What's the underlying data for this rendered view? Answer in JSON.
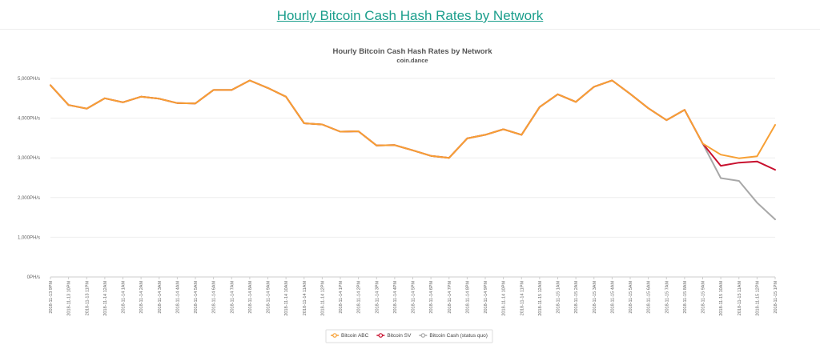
{
  "page": {
    "title": "Hourly Bitcoin Cash Hash Rates by Network"
  },
  "chart_data": {
    "type": "line",
    "title": "Hourly Bitcoin Cash Hash Rates by Network",
    "subtitle": "coin.dance",
    "xlabel": "",
    "ylabel": "",
    "ylim": [
      0,
      5000
    ],
    "y_ticks": [
      "0PH/s",
      "1,000PH/s",
      "2,000PH/s",
      "3,000PH/s",
      "4,000PH/s",
      "5,000PH/s"
    ],
    "y_tick_values": [
      0,
      1000,
      2000,
      3000,
      4000,
      5000
    ],
    "grid": true,
    "legend_position": "bottom",
    "categories": [
      "2018-11-13 9PM",
      "2018-11-13 10PM",
      "2018-11-13 11PM",
      "2018-11-14 12AM",
      "2018-11-14 1AM",
      "2018-11-14 2AM",
      "2018-11-14 3AM",
      "2018-11-14 4AM",
      "2018-11-14 5AM",
      "2018-11-14 6AM",
      "2018-11-14 7AM",
      "2018-11-14 8AM",
      "2018-11-14 9AM",
      "2018-11-14 10AM",
      "2018-11-14 11AM",
      "2018-11-14 12PM",
      "2018-11-14 1PM",
      "2018-11-14 2PM",
      "2018-11-14 3PM",
      "2018-11-14 4PM",
      "2018-11-14 5PM",
      "2018-11-14 6PM",
      "2018-11-14 7PM",
      "2018-11-14 8PM",
      "2018-11-14 9PM",
      "2018-11-14 10PM",
      "2018-11-14 11PM",
      "2018-11-15 12AM",
      "2018-11-15 1AM",
      "2018-11-15 2AM",
      "2018-11-15 3AM",
      "2018-11-15 4AM",
      "2018-11-15 5AM",
      "2018-11-15 6AM",
      "2018-11-15 7AM",
      "2018-11-15 8AM",
      "2018-11-15 9AM",
      "2018-11-15 10AM",
      "2018-11-15 11AM",
      "2018-11-15 12PM",
      "2018-11-15 1PM"
    ],
    "series": [
      {
        "name": "Bitcoin ABC",
        "color": "#f7a035",
        "values": [
          4830,
          4330,
          4240,
          4500,
          4400,
          4540,
          4490,
          4380,
          4370,
          4710,
          4710,
          4950,
          4760,
          4540,
          3870,
          3840,
          3660,
          3670,
          3310,
          3320,
          3190,
          3050,
          3000,
          3490,
          3580,
          3720,
          3580,
          4280,
          4600,
          4410,
          4790,
          4950,
          4610,
          4250,
          3950,
          4210,
          3360,
          3080,
          2990,
          3040,
          3830
        ]
      },
      {
        "name": "Bitcoin SV",
        "color": "#c8102e",
        "values": [
          4830,
          4330,
          4240,
          4500,
          4400,
          4540,
          4490,
          4380,
          4370,
          4710,
          4710,
          4950,
          4760,
          4540,
          3870,
          3840,
          3660,
          3670,
          3310,
          3320,
          3190,
          3050,
          3000,
          3490,
          3580,
          3720,
          3580,
          4280,
          4600,
          4410,
          4790,
          4950,
          4610,
          4250,
          3950,
          4210,
          3360,
          2800,
          2880,
          2910,
          2700
        ]
      },
      {
        "name": "Bitcoin Cash (status quo)",
        "color": "#a8a8a8",
        "values": [
          4830,
          4330,
          4240,
          4500,
          4400,
          4540,
          4490,
          4380,
          4370,
          4710,
          4710,
          4950,
          4760,
          4540,
          3870,
          3840,
          3660,
          3670,
          3310,
          3320,
          3190,
          3050,
          3000,
          3490,
          3580,
          3720,
          3580,
          4280,
          4600,
          4410,
          4790,
          4950,
          4610,
          4250,
          3950,
          4210,
          3360,
          2490,
          2420,
          1870,
          1450
        ]
      }
    ]
  }
}
